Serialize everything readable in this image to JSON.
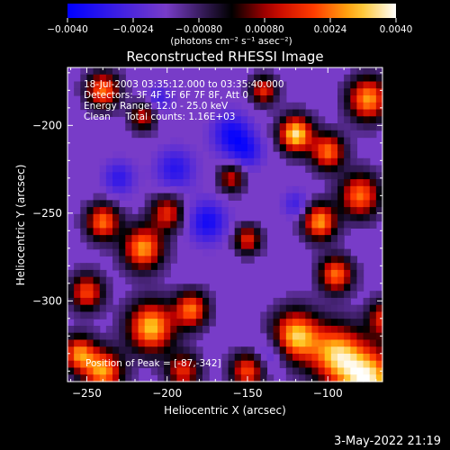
{
  "chart_data": {
    "type": "heatmap",
    "title": "Reconstructed RHESSI Image",
    "xlabel": "Heliocentric X (arcsec)",
    "ylabel": "Heliocentric Y (arcsec)",
    "xlim": [
      -262,
      -66
    ],
    "ylim": [
      -346,
      -167
    ],
    "x_ticks": [
      -250,
      -200,
      -150,
      -100
    ],
    "x_tick_labels": [
      "−250",
      "−200",
      "−150",
      "−100"
    ],
    "y_ticks": [
      -200,
      -250,
      -300
    ],
    "y_tick_labels": [
      "−200",
      "−250",
      "−300"
    ],
    "colorbar": {
      "min": -0.004,
      "max": 0.004,
      "ticks": [
        -0.004,
        -0.0024,
        -0.0008,
        0.0008,
        0.0024,
        0.004
      ],
      "tick_labels": [
        "−0.0040",
        "−0.0024",
        "−0.00080",
        "0.00080",
        "0.0024",
        "0.0040"
      ],
      "units": "(photons cm⁻² s⁻¹ asec⁻²)"
    },
    "annotations": [
      "18-Jul-2003 03:35:12.000 to 03:35:40.000",
      "Detectors: 3F 4F 5F 6F 7F 8F, Att 0",
      "Energy Range: 12.0 - 25.0 keV",
      "Clean     Total counts: 1.16E+03",
      "Position of Peak = [-87,-342]"
    ],
    "colormap": {
      "low": "#0000ff",
      "mid_low": "#8040c0",
      "mid": "#000000",
      "mid_high": "#ff2000",
      "high": "#ffffff"
    }
  },
  "footer": {
    "timestamp": "3-May-2022 21:19"
  }
}
